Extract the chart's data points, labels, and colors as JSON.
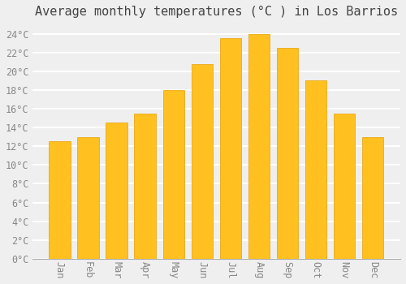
{
  "title": "Average monthly temperatures (°C ) in Los Barrios",
  "months": [
    "Jan",
    "Feb",
    "Mar",
    "Apr",
    "May",
    "Jun",
    "Jul",
    "Aug",
    "Sep",
    "Oct",
    "Nov",
    "Dec"
  ],
  "temperatures": [
    12.5,
    13.0,
    14.5,
    15.5,
    18.0,
    20.8,
    23.5,
    24.0,
    22.5,
    19.0,
    15.5,
    13.0
  ],
  "bar_color_face": "#FFC020",
  "bar_color_edge": "#E8A000",
  "background_color": "#EFEFEF",
  "plot_bg_color": "#EFEFEF",
  "grid_color": "#FFFFFF",
  "ytick_color": "#888888",
  "xtick_color": "#888888",
  "ylim": [
    0,
    25
  ],
  "ytick_step": 2,
  "title_fontsize": 11,
  "tick_fontsize": 8.5,
  "bar_width": 0.75
}
